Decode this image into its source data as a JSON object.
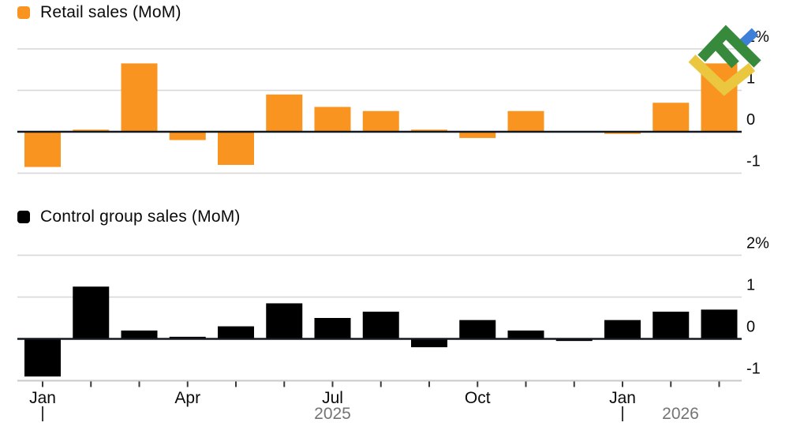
{
  "page": {
    "background": "#FFFFFF"
  },
  "chart_data": [
    {
      "type": "bar",
      "title": "Retail sales (MoM)",
      "series_color": "#F8941F",
      "unit": "%",
      "categories": [
        "Jan 2025",
        "Feb 2025",
        "Mar 2025",
        "Apr 2025",
        "May 2025",
        "Jun 2025",
        "Jul 2025",
        "Aug 2025",
        "Sep 2025",
        "Oct 2025",
        "Nov 2025",
        "Dec 2025",
        "Jan 2026",
        "Feb 2026",
        "Mar 2026"
      ],
      "values": [
        -0.85,
        0.05,
        1.65,
        -0.2,
        -0.8,
        0.9,
        0.6,
        0.5,
        0.05,
        -0.15,
        0.5,
        0,
        -0.05,
        0.7,
        1.65
      ],
      "ylim": [
        -1,
        2
      ],
      "yticks": [
        {
          "value": 2,
          "label": "2%"
        },
        {
          "value": 1,
          "label": "1"
        },
        {
          "value": 0,
          "label": "0"
        },
        {
          "value": -1,
          "label": "-1"
        }
      ],
      "grid": true,
      "legend_position": "top-left",
      "x_axis_shown": false
    },
    {
      "type": "bar",
      "title": "Control group sales (MoM)",
      "series_color": "#000000",
      "unit": "%",
      "categories": [
        "Jan 2025",
        "Feb 2025",
        "Mar 2025",
        "Apr 2025",
        "May 2025",
        "Jun 2025",
        "Jul 2025",
        "Aug 2025",
        "Sep 2025",
        "Oct 2025",
        "Nov 2025",
        "Dec 2025",
        "Jan 2026",
        "Feb 2026",
        "Mar 2026"
      ],
      "values": [
        -0.9,
        1.25,
        0.2,
        0.05,
        0.3,
        0.85,
        0.5,
        0.65,
        -0.2,
        0.45,
        0.2,
        -0.05,
        0.45,
        0.65,
        0.7
      ],
      "ylim": [
        -1,
        2
      ],
      "yticks": [
        {
          "value": 2,
          "label": "2%"
        },
        {
          "value": 1,
          "label": "1"
        },
        {
          "value": 0,
          "label": "0"
        },
        {
          "value": -1,
          "label": "-1"
        }
      ],
      "grid": true,
      "legend_position": "top-left",
      "x_axis_shown": true,
      "x_tick_labels": [
        {
          "index": 0,
          "label": "Jan"
        },
        {
          "index": 3,
          "label": "Apr"
        },
        {
          "index": 6,
          "label": "Jul"
        },
        {
          "index": 9,
          "label": "Oct"
        },
        {
          "index": 12,
          "label": "Jan"
        }
      ],
      "year_labels": [
        {
          "label": "2025",
          "anchor_index": 6
        },
        {
          "label": "2026",
          "anchor_index": 13.2
        }
      ],
      "year_divider_indices": [
        0,
        12
      ]
    }
  ],
  "watermark": {
    "name": "litefinance-logo",
    "colors": {
      "blue": "#3E80D8",
      "green": "#378A3C",
      "yellow": "#EAC73E"
    }
  },
  "style_colors": {
    "gridline": "#D6D6D6",
    "zero_line": "#14181F",
    "axis_baseline": "#C8C8C8",
    "axis_tick": "#3A3A3A",
    "year_text": "#747474"
  }
}
